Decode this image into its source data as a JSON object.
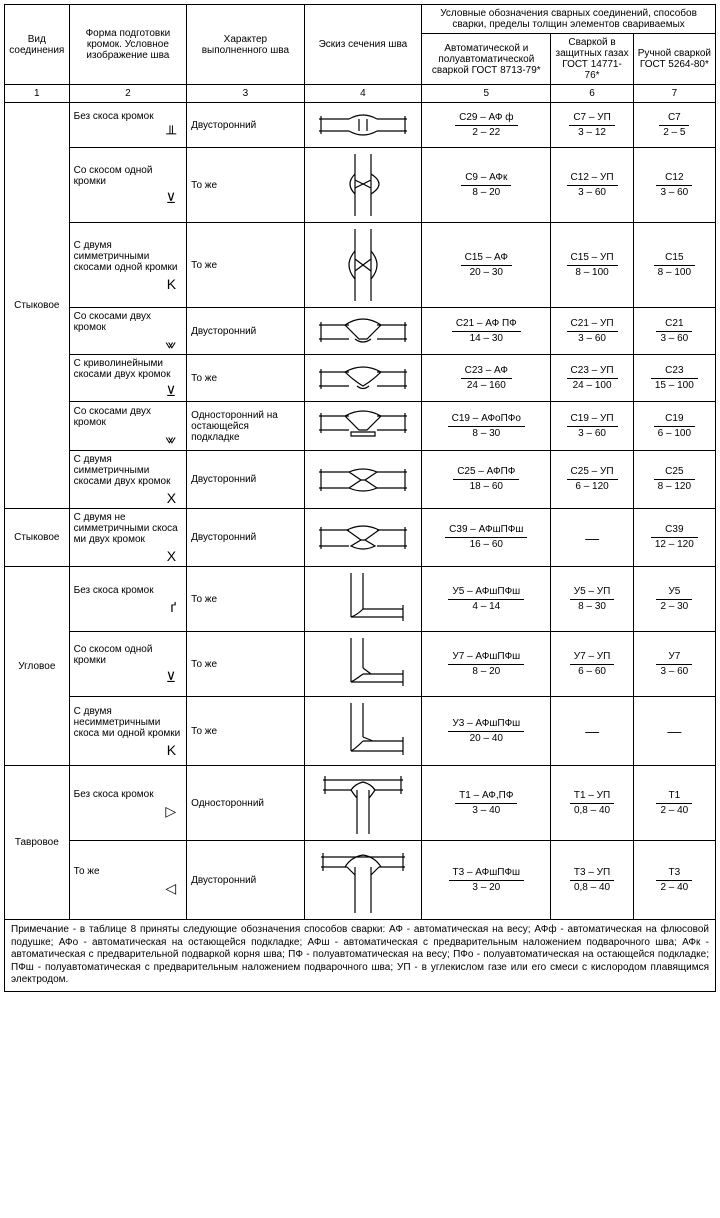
{
  "headers": {
    "c1": "Вид соединения",
    "c2": "Форма подготовки кромок. Условное изображение шва",
    "c3": "Характер выполненного шва",
    "c4": "Эскиз сечения шва",
    "group": "Условные обозначения сварных соединений, способов сварки, пределы толщин элементов свариваемых",
    "c5": "Автоматической и полуавтоматической сваркой ГОСТ 8713-79*",
    "c6": "Сваркой в защитных газах ГОСТ 14771-76*",
    "c7": "Ручной сваркой ГОСТ 5264-80*",
    "n1": "1",
    "n2": "2",
    "n3": "3",
    "n4": "4",
    "n5": "5",
    "n6": "6",
    "n7": "7"
  },
  "groups": {
    "g1": "Стыковое",
    "g2": "Стыковое",
    "g3": "Угловое",
    "g4": "Тавровое"
  },
  "rows": {
    "r1": {
      "edge": "Без скоса кромок",
      "sym": "╨",
      "char": "Двусторонний",
      "c5n": "С29 – АФ ф",
      "c5d": "2 – 22",
      "c6n": "С7 – УП",
      "c6d": "3 – 12",
      "c7n": "С7",
      "c7d": "2 – 5"
    },
    "r2": {
      "edge": "Со скосом одной кромки",
      "sym": "⊻",
      "char": "То же",
      "c5n": "С9 – АФк",
      "c5d": "8 – 20",
      "c6n": "С12 – УП",
      "c6d": "3 – 60",
      "c7n": "С12",
      "c7d": "3 – 60"
    },
    "r3": {
      "edge": "С двумя симметричными скосами одной кромки",
      "sym": "K",
      "char": "То же",
      "c5n": "С15 – АФ",
      "c5d": "20 – 30",
      "c6n": "С15 – УП",
      "c6d": "8 – 100",
      "c7n": "С15",
      "c7d": "8 – 100"
    },
    "r4": {
      "edge": "Со скосами двух кромок",
      "sym": "⩖",
      "char": "Двусторонний",
      "c5n": "С21 – АФ  ПФ",
      "c5d": "14 – 30",
      "c6n": "С21 – УП",
      "c6d": "3 – 60",
      "c7n": "С21",
      "c7d": "3 – 60"
    },
    "r5": {
      "edge": "С криволинейными скосами двух кромок",
      "sym": "⊻",
      "char": "То же",
      "c5n": "С23 – АФ",
      "c5d": "24 – 160",
      "c6n": "С23 – УП",
      "c6d": "24 – 100",
      "c7n": "С23",
      "c7d": "15 – 100"
    },
    "r6": {
      "edge": "Со скосами двух кромок",
      "sym": "⩖",
      "char": "Односторонний на остающейся подкладке",
      "c5n": "С19 – АФоПФо",
      "c5d": "8 – 30",
      "c6n": "С19 – УП",
      "c6d": "3 – 60",
      "c7n": "С19",
      "c7d": "6 – 100"
    },
    "r7": {
      "edge": "С двумя симметричными скосами двух кромок",
      "sym": "X",
      "char": "Двусторонний",
      "c5n": "С25 – АФПФ",
      "c5d": "18 – 60",
      "c6n": "С25 – УП",
      "c6d": "6 – 120",
      "c7n": "С25",
      "c7d": "8 – 120"
    },
    "r8": {
      "edge": "С двумя не симметричными скоса ми двух кромок",
      "sym": "X",
      "char": "Двусторонний",
      "c5n": "С39 – АФшПФш",
      "c5d": "16 – 60",
      "c6n": "—",
      "c6d": "",
      "c7n": "С39",
      "c7d": "12 – 120"
    },
    "r9": {
      "edge": "Без скоса кромок",
      "sym": "ґ",
      "char": "То же",
      "c5n": "У5 – АФшПФш",
      "c5d": "4 – 14",
      "c6n": "У5 – УП",
      "c6d": "8 – 30",
      "c7n": "У5",
      "c7d": "2 – 30"
    },
    "r10": {
      "edge": "Со скосом одной кромки",
      "sym": "⊻",
      "char": "То же",
      "c5n": "У7 – АФшПФш",
      "c5d": "8 – 20",
      "c6n": "У7 – УП",
      "c6d": "6 – 60",
      "c7n": "У7",
      "c7d": "3 – 60"
    },
    "r11": {
      "edge": "С двумя несимметричными скоса ми одной кромки",
      "sym": "K",
      "char": "То же",
      "c5n": "У3 – АФшПФш",
      "c5d": "20 – 40",
      "c6n": "—",
      "c6d": "",
      "c7n": "—",
      "c7d": ""
    },
    "r12": {
      "edge": "Без скоса кромок",
      "sym": "▷",
      "char": "Односторонний",
      "c5n": "Т1 – АФ,ПФ",
      "c5d": "3 – 40",
      "c6n": "Т1 – УП",
      "c6d": "0,8 – 40",
      "c7n": "Т1",
      "c7d": "2 – 40"
    },
    "r13": {
      "edge": "То же",
      "sym": "◁",
      "char": "Двусторонний",
      "c5n": "Т3 – АФшПФш",
      "c5d": "3 – 20",
      "c6n": "Т3 – УП",
      "c6d": "0,8 – 40",
      "c7n": "Т3",
      "c7d": "2 – 40"
    }
  },
  "note": "Примечание - в таблице 8 приняты следующие обозначения способов сварки: АФ - автоматическая на весу; АФф - автоматическая на флюсовой подушке; АФо - автоматическая на остающейся подкладке; АФш - автоматическая с предварительным наложением подварочного шва; АФк - автоматическая с предварительной подваркой корня шва; ПФ - полуавтоматическая на весу; ПФо - полуавтоматическая на остающейся подкладке; ПФш - полуавтоматическая с предварительным наложением подварочного шва; УП - в углекислом газе или его смеси с кислородом плавящимся электродом."
}
